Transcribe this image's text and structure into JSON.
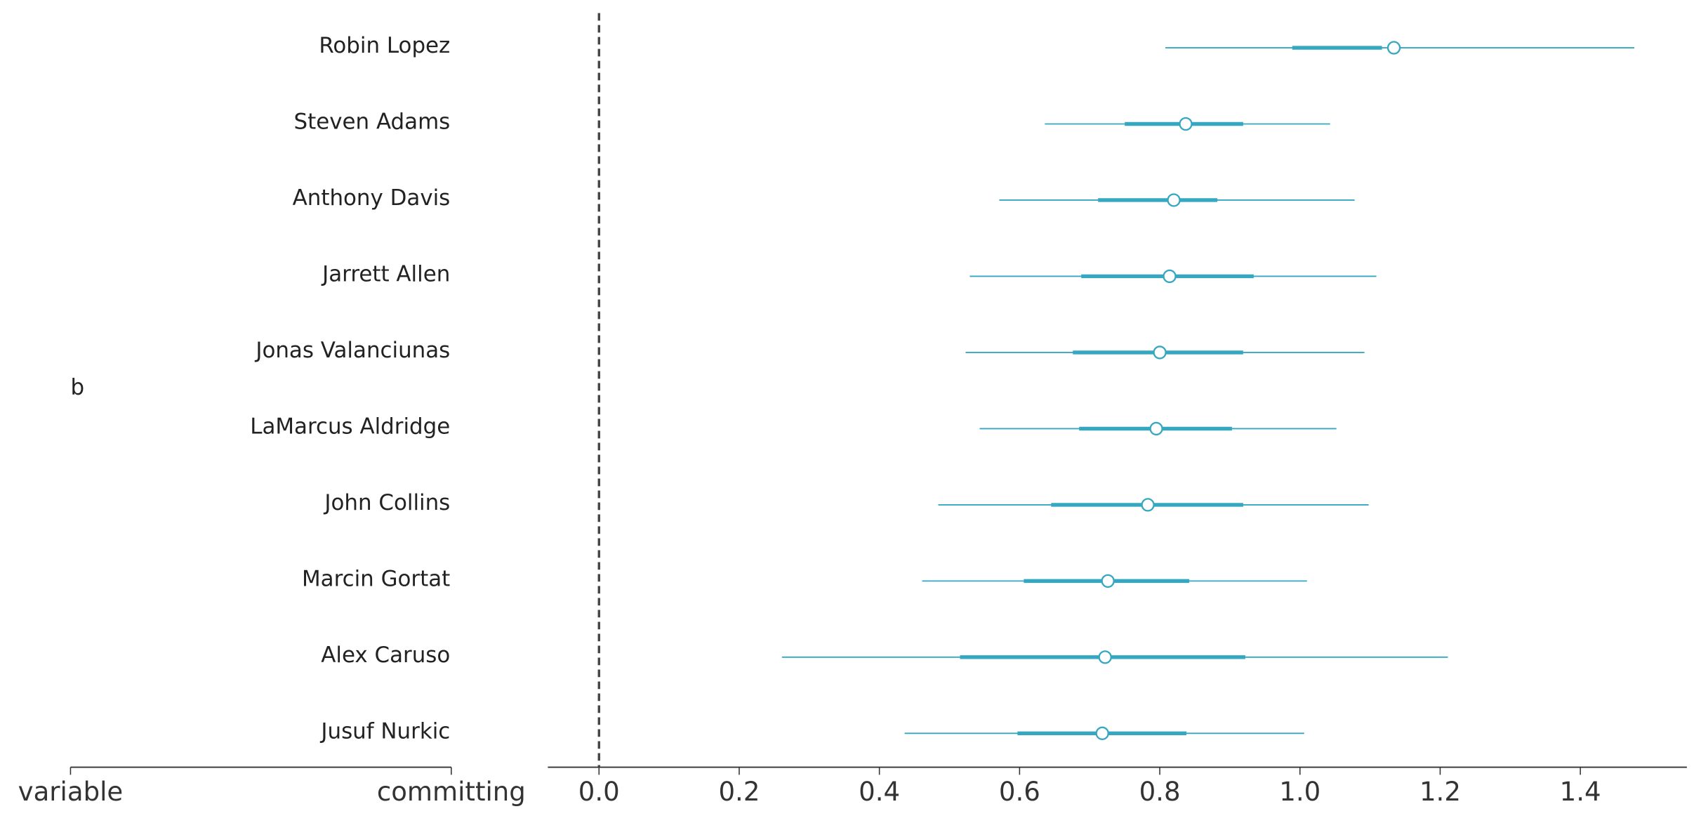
{
  "chart_data": {
    "type": "forest",
    "group_label": "b",
    "column_labels": [
      "variable",
      "committing"
    ],
    "categories": [
      "Robin Lopez",
      "Steven Adams",
      "Anthony Davis",
      "Jarrett Allen",
      "Jonas Valanciunas",
      "LaMarcus Aldridge",
      "John Collins",
      "Marcin Gortat",
      "Alex Caruso",
      "Jusuf Nurkic"
    ],
    "values": [
      1.134,
      0.837,
      0.82,
      0.814,
      0.8,
      0.795,
      0.783,
      0.726,
      0.722,
      0.718
    ],
    "hdi_low": [
      0.808,
      0.636,
      0.571,
      0.529,
      0.523,
      0.543,
      0.484,
      0.461,
      0.261,
      0.436
    ],
    "hdi_high": [
      1.477,
      1.043,
      1.078,
      1.109,
      1.092,
      1.052,
      1.098,
      1.01,
      1.211,
      1.006
    ],
    "iqr_low": [
      0.989,
      0.75,
      0.712,
      0.688,
      0.676,
      0.685,
      0.645,
      0.606,
      0.515,
      0.597
    ],
    "iqr_high": [
      1.117,
      0.919,
      0.882,
      0.934,
      0.919,
      0.903,
      0.919,
      0.842,
      0.922,
      0.838
    ],
    "color": "#35a7c0",
    "reference_line": 0,
    "xlim": [
      -0.073,
      1.552
    ],
    "xticks": [
      {
        "value": 0,
        "label": "0.0"
      },
      0.2,
      0.4,
      0.6,
      0.8,
      {
        "value": 1,
        "label": "1.0"
      },
      1.2,
      1.4
    ]
  }
}
